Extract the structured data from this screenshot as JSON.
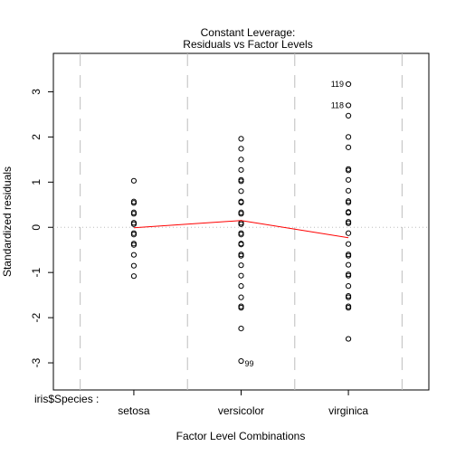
{
  "chart_data": {
    "type": "scatter",
    "title": "Constant Leverage:",
    "subtitle": "Residuals vs Factor Levels",
    "xlabel": "Factor Level Combinations",
    "ylabel": "Standardized residuals",
    "factor_label": "iris$Species :",
    "categories": [
      "setosa",
      "versicolor",
      "virginica"
    ],
    "ylim": [
      -3.6,
      3.85
    ],
    "yticks": [
      -3,
      -2,
      -1,
      0,
      1,
      2,
      3
    ],
    "grid": false,
    "points": {
      "setosa": [
        1.03,
        0.57,
        0.54,
        0.33,
        0.3,
        0.1,
        0.07,
        -0.13,
        -0.16,
        -0.36,
        -0.39,
        -0.61,
        -0.85,
        -1.08
      ],
      "versicolor": [
        1.96,
        1.74,
        1.5,
        1.27,
        1.05,
        1.02,
        0.8,
        0.57,
        0.55,
        0.33,
        0.3,
        0.1,
        0.07,
        -0.13,
        -0.16,
        -0.36,
        -0.38,
        -0.6,
        -0.63,
        -0.84,
        -1.07,
        -1.3,
        -1.55,
        -1.75,
        -1.78,
        -2.24,
        -2.96
      ],
      "virginica": [
        3.17,
        2.7,
        2.47,
        2.0,
        1.77,
        1.29,
        1.26,
        1.05,
        0.81,
        0.58,
        0.55,
        0.34,
        0.32,
        0.12,
        0.09,
        -0.13,
        -0.37,
        -0.6,
        -0.63,
        -0.83,
        -1.04,
        -1.07,
        -1.3,
        -1.52,
        -1.55,
        -1.75,
        -1.78,
        -2.47
      ]
    },
    "fit_line": [
      -0.01,
      0.15,
      -0.23
    ],
    "annotations": [
      {
        "label": "119",
        "category": "virginica",
        "y": 3.17,
        "side": "left"
      },
      {
        "label": "118",
        "category": "virginica",
        "y": 2.7,
        "side": "left"
      },
      {
        "label": "99",
        "category": "versicolor",
        "y": -2.96,
        "side": "right"
      }
    ],
    "colors": {
      "points": "#000000",
      "fit_line": "#ff0000",
      "zero_line": "#bebebe",
      "dividers": "#bebebe",
      "axes": "#000000"
    }
  }
}
